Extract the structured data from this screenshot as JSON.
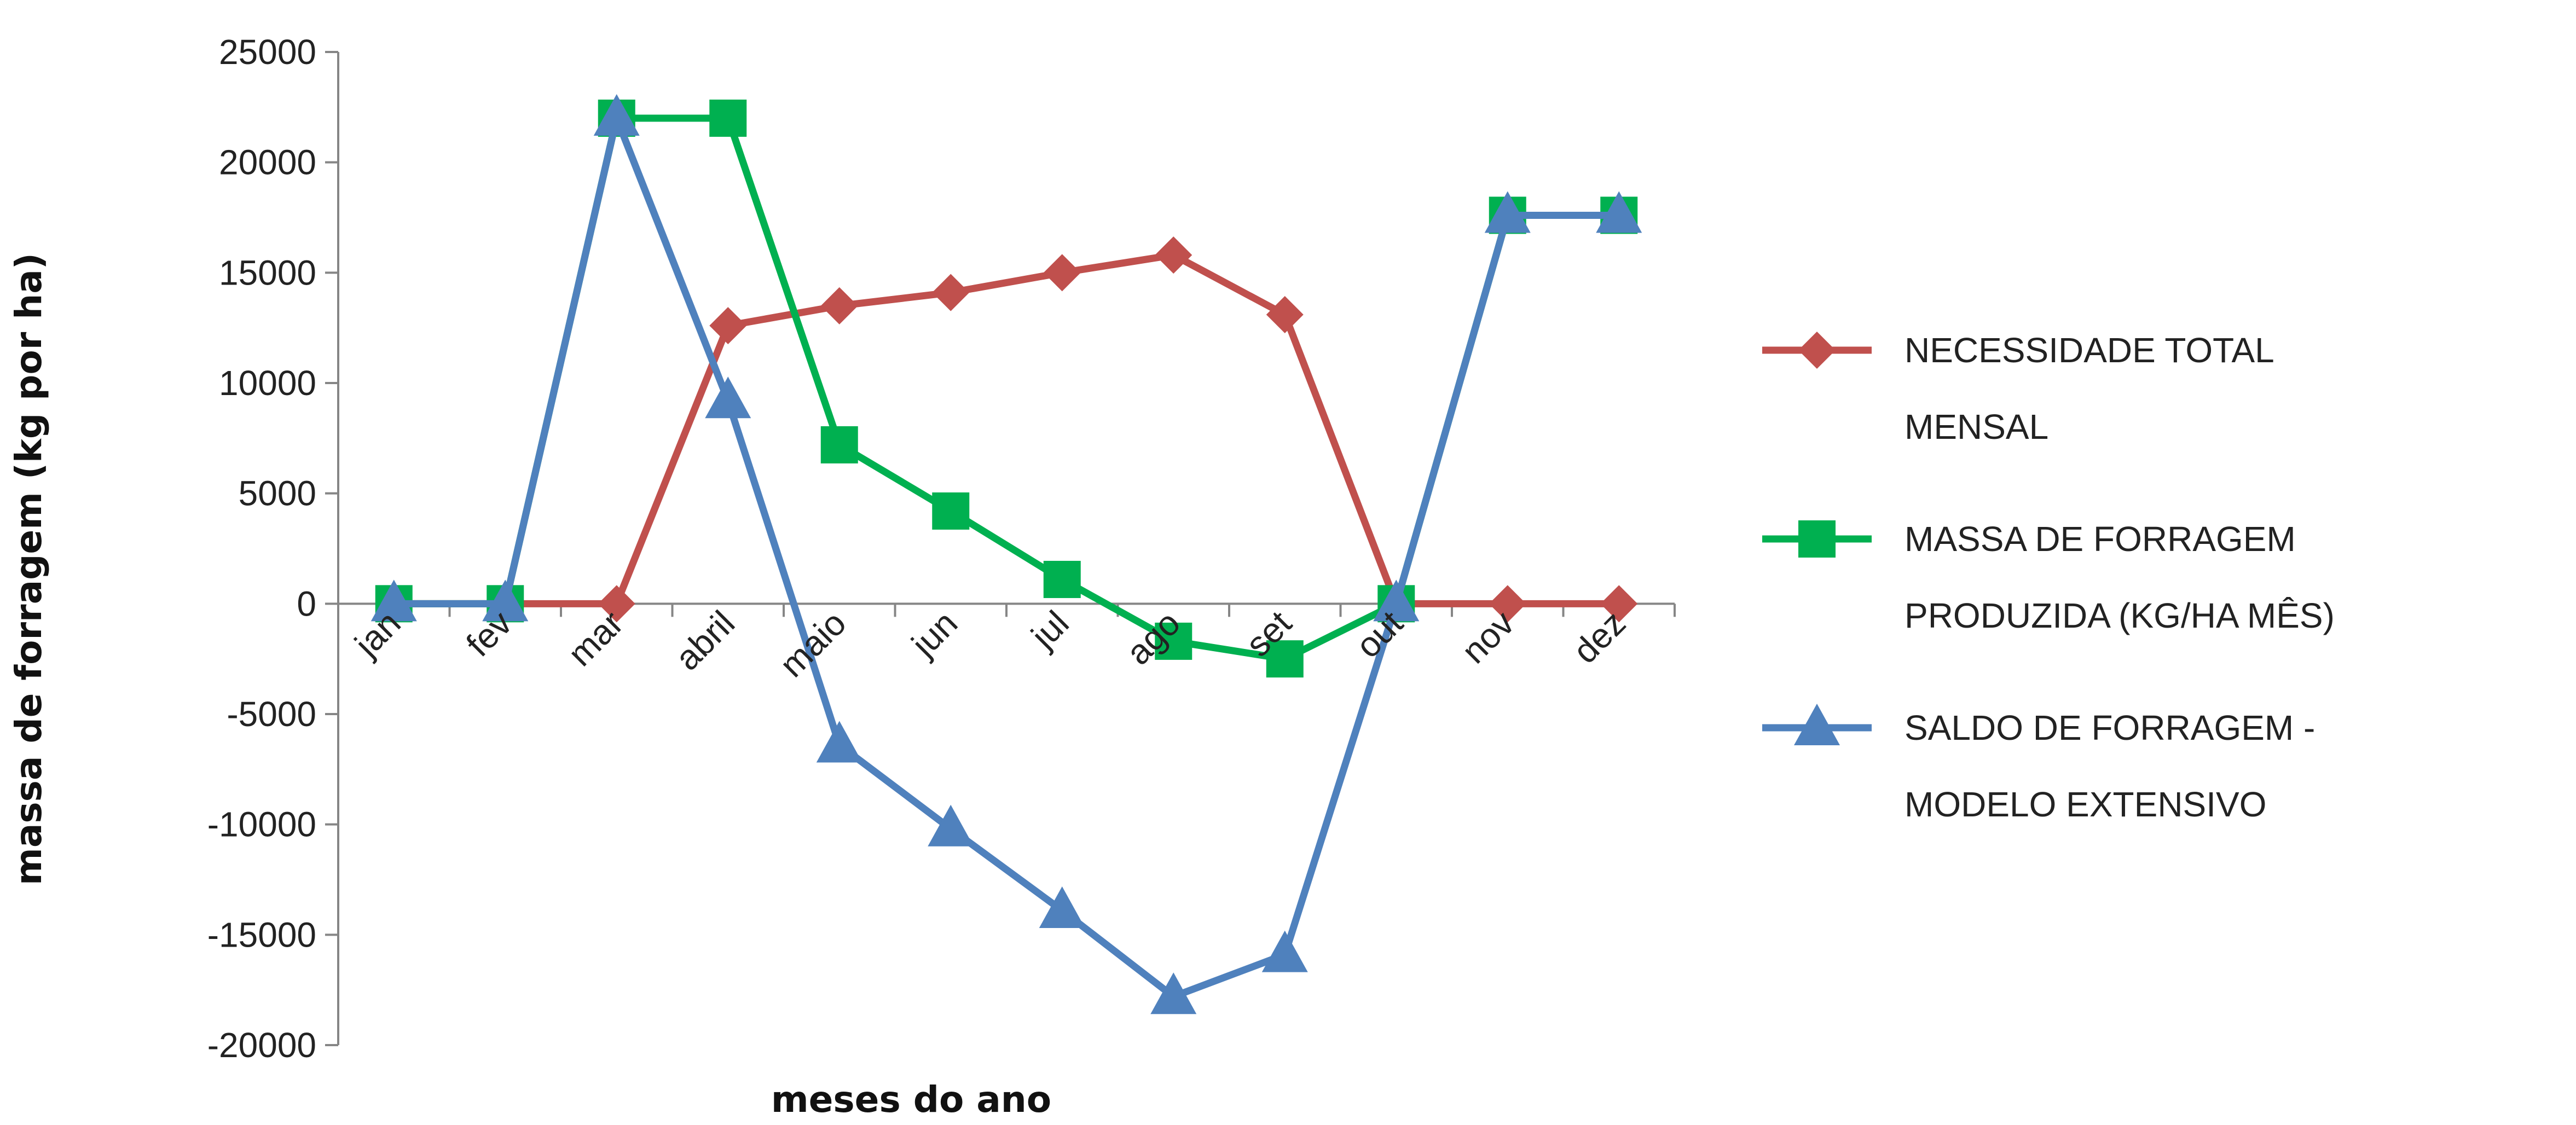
{
  "chart_data": {
    "type": "line",
    "title": "",
    "xlabel": "meses do ano",
    "ylabel": "massa de forragem (kg por ha)",
    "categories": [
      "jan",
      "fev",
      "mar",
      "abril",
      "maio",
      "jun",
      "jul",
      "ago",
      "set",
      "out",
      "nov",
      "dez"
    ],
    "ylim": [
      -20000,
      25000
    ],
    "yticks": [
      "25000",
      "20000",
      "15000",
      "10000",
      "5000",
      "0",
      "-5000",
      "-10000",
      "-15000",
      "-20000"
    ],
    "grid": false,
    "legend_position": "right",
    "series": [
      {
        "name": "NECESSIDADE TOTAL MENSAL",
        "legend_lines": [
          "NECESSIDADE TOTAL",
          "MENSAL"
        ],
        "color": "#C0504D",
        "marker": "diamond",
        "values": [
          0,
          0,
          0,
          12600,
          13500,
          14100,
          15000,
          15800,
          13100,
          0,
          0,
          0
        ]
      },
      {
        "name": "MASSA DE FORRAGEM PRODUZIDA (KG/HA MÊS)",
        "legend_lines": [
          "MASSA DE FORRAGEM",
          "PRODUZIDA (KG/HA MÊS)"
        ],
        "color": "#00B050",
        "marker": "square",
        "values": [
          0,
          0,
          22000,
          22000,
          7200,
          4200,
          1100,
          -1700,
          -2500,
          0,
          17600,
          17600
        ]
      },
      {
        "name": "SALDO DE FORRAGEM - MODELO EXTENSIVO",
        "legend_lines": [
          "SALDO DE FORRAGEM -",
          "MODELO EXTENSIVO"
        ],
        "color": "#4F81BD",
        "marker": "triangle",
        "values": [
          0,
          0,
          22000,
          9200,
          -6400,
          -10200,
          -13900,
          -17800,
          -15900,
          0,
          17600,
          17600
        ]
      }
    ]
  }
}
